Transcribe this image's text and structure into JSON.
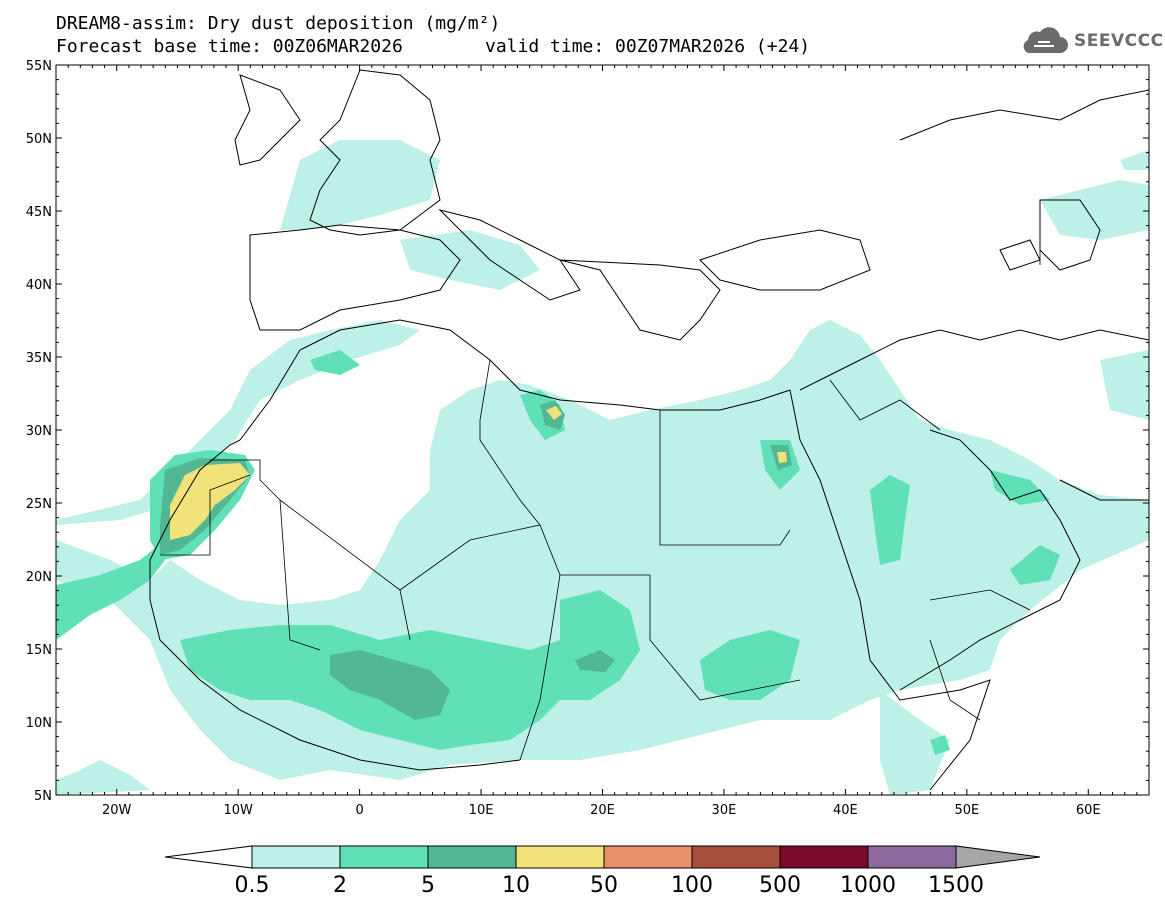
{
  "title": {
    "line1": "DREAM8-assim: Dry dust deposition (mg/m²)",
    "base_time": "Forecast base time: 00Z06MAR2026",
    "valid_time": "valid time: 00Z07MAR2026 (+24)"
  },
  "logo": {
    "icon": "cloud-icon",
    "text": "SEEVCCC"
  },
  "map": {
    "lon_range": [
      -25,
      65
    ],
    "lat_range": [
      5,
      55
    ],
    "lat_ticks": [
      "55N",
      "50N",
      "45N",
      "40N",
      "35N",
      "30N",
      "25N",
      "20N",
      "15N",
      "10N",
      "5N"
    ],
    "lon_ticks": [
      "20W",
      "10W",
      "0",
      "10E",
      "20E",
      "30E",
      "40E",
      "50E",
      "60E"
    ]
  },
  "colorbar": {
    "labels": [
      "0.5",
      "2",
      "5",
      "10",
      "50",
      "100",
      "500",
      "1000",
      "1500"
    ],
    "colors": [
      "#bdf0e6",
      "#5fe0b7",
      "#52b894",
      "#f2e27a",
      "#e8906a",
      "#a84e3c",
      "#7a0a2a",
      "#8c6aa0",
      "#a6a6a6"
    ]
  }
}
